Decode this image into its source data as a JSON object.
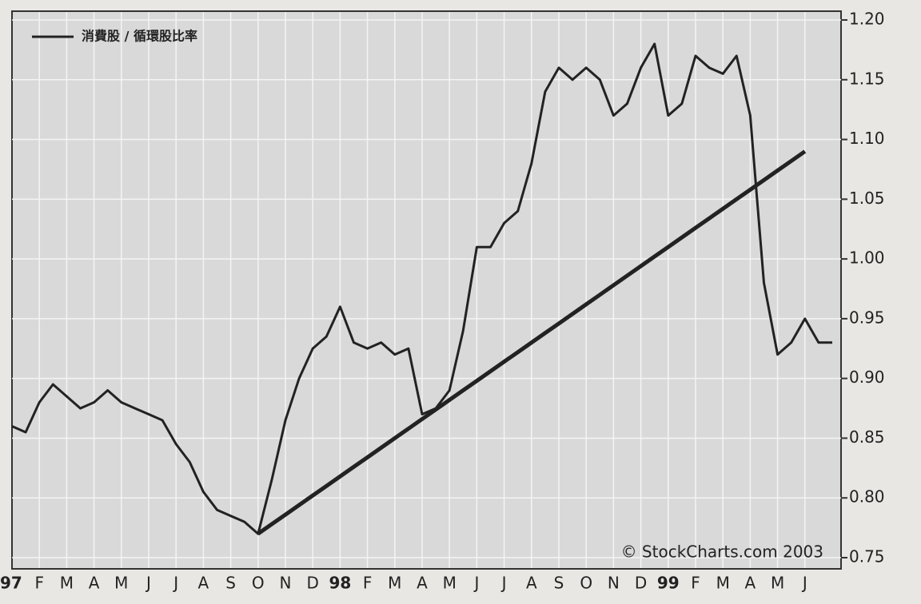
{
  "chart_data": {
    "type": "line",
    "legend_text": "消費股 / 循環股比率",
    "annotation": "© StockCharts.com 2003",
    "categories": [
      "97",
      null,
      "F",
      null,
      "M",
      null,
      "A",
      null,
      "M",
      null,
      "J",
      null,
      "J",
      null,
      "A",
      null,
      "S",
      null,
      "O",
      null,
      "N",
      null,
      "D",
      null,
      "98",
      null,
      "F",
      null,
      "M",
      null,
      "A",
      null,
      "M",
      null,
      "J",
      null,
      "J",
      null,
      "A",
      null,
      "S",
      null,
      "O",
      null,
      "N",
      null,
      "D",
      null,
      "99",
      null,
      "F",
      null,
      "M",
      null,
      "A",
      null,
      "M",
      null,
      "J",
      null,
      null
    ],
    "series": [
      {
        "name": "消費股 / 循環股比率",
        "color": "#222222",
        "values": [
          0.86,
          0.855,
          0.88,
          0.895,
          0.885,
          0.875,
          0.88,
          0.89,
          0.88,
          0.875,
          0.87,
          0.865,
          0.845,
          0.83,
          0.805,
          0.79,
          0.785,
          0.78,
          0.77,
          0.815,
          0.865,
          0.9,
          0.925,
          0.935,
          0.96,
          0.93,
          0.925,
          0.93,
          0.92,
          0.925,
          0.87,
          0.875,
          0.89,
          0.94,
          1.01,
          1.01,
          1.03,
          1.04,
          1.08,
          1.14,
          1.16,
          1.15,
          1.16,
          1.15,
          1.12,
          1.13,
          1.16,
          1.18,
          1.12,
          1.13,
          1.17,
          1.16,
          1.155,
          1.17,
          1.12,
          0.98,
          0.92,
          0.93,
          0.95,
          0.93,
          0.93
        ]
      },
      {
        "color": "#222222",
        "values": [
          null,
          null,
          null,
          null,
          null,
          null,
          null,
          null,
          null,
          null,
          null,
          null,
          null,
          null,
          null,
          null,
          null,
          null,
          0.77,
          0.778,
          0.786,
          0.794,
          0.802,
          0.81,
          0.818,
          0.826,
          0.834,
          0.842,
          0.85,
          0.858,
          0.866,
          0.874,
          0.882,
          0.89,
          0.898,
          0.906,
          0.914,
          0.922,
          0.93,
          0.938,
          0.946,
          0.954,
          0.962,
          0.97,
          0.978,
          0.986,
          0.994,
          1.002,
          1.01,
          1.018,
          1.026,
          1.034,
          1.042,
          1.05,
          1.058,
          1.066,
          1.074,
          1.082,
          1.09,
          null,
          null
        ]
      }
    ],
    "ylim": [
      0.75,
      1.2
    ],
    "yticks": [
      {
        "value": 0.75,
        "label": "0.75"
      },
      {
        "value": 0.8,
        "label": "0.80"
      },
      {
        "value": 0.85,
        "label": "0.85"
      },
      {
        "value": 0.9,
        "label": "0.90"
      },
      {
        "value": 0.95,
        "label": "0.95"
      },
      {
        "value": 1.0,
        "label": "1.00"
      },
      {
        "value": 1.05,
        "label": "1.05"
      },
      {
        "value": 1.1,
        "label": "1.10"
      },
      {
        "value": 1.15,
        "label": "1.15"
      },
      {
        "value": 1.2,
        "label": "1.20"
      }
    ],
    "grid": true
  }
}
